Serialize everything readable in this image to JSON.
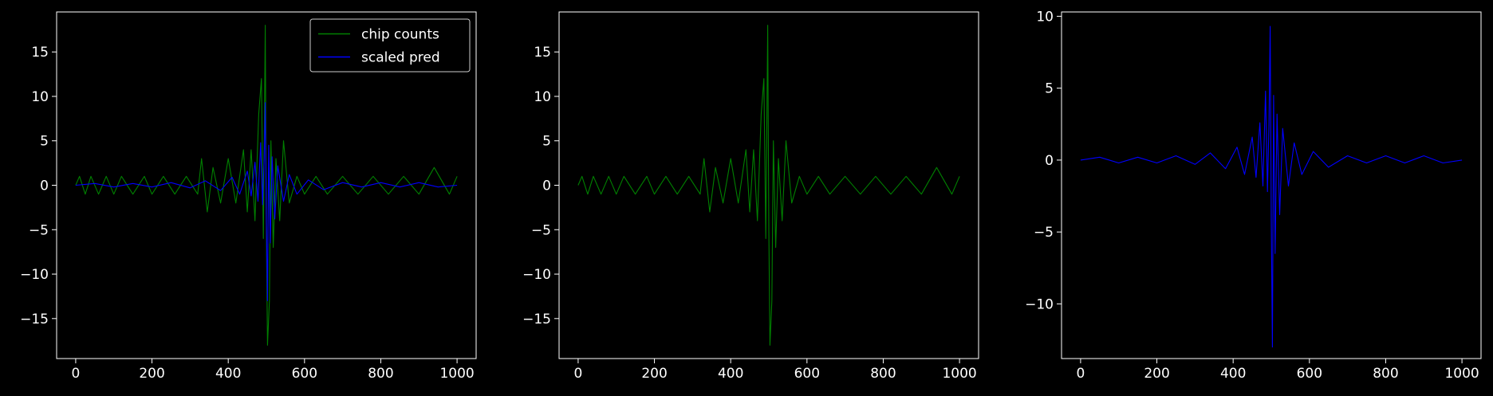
{
  "chart_data": [
    {
      "type": "line",
      "title": "",
      "xlabel": "",
      "ylabel": "",
      "xlim": [
        -50,
        1050
      ],
      "ylim": [
        -19.5,
        19.5
      ],
      "x_ticks": [
        "0",
        "200",
        "400",
        "600",
        "800",
        "1000"
      ],
      "y_ticks": [
        "−15",
        "−10",
        "−5",
        "0",
        "5",
        "10",
        "15"
      ],
      "legend": {
        "position": "top-right",
        "entries": [
          "chip counts",
          "scaled pred"
        ]
      },
      "series": [
        {
          "name": "chip counts",
          "color": "#008000",
          "x": [
            0,
            10,
            25,
            40,
            60,
            80,
            100,
            120,
            150,
            180,
            200,
            230,
            260,
            290,
            320,
            330,
            345,
            360,
            380,
            400,
            420,
            440,
            450,
            460,
            470,
            480,
            487,
            492,
            497,
            500,
            503,
            508,
            512,
            518,
            525,
            535,
            545,
            560,
            580,
            600,
            630,
            660,
            700,
            740,
            780,
            820,
            860,
            900,
            940,
            980,
            1000
          ],
          "y": [
            0,
            1,
            -1,
            1,
            -1,
            1,
            -1,
            1,
            -1,
            1,
            -1,
            1,
            -1,
            1,
            -1,
            3,
            -3,
            2,
            -2,
            3,
            -2,
            4,
            -3,
            4,
            -4,
            8,
            12,
            -6,
            18,
            -5,
            -18,
            -13,
            5,
            -7,
            3,
            -4,
            5,
            -2,
            1,
            -1,
            1,
            -1,
            1,
            -1,
            1,
            -1,
            1,
            -1,
            2,
            -1,
            1
          ]
        },
        {
          "name": "scaled pred",
          "color": "#0000ff",
          "x": [
            0,
            50,
            100,
            150,
            200,
            250,
            300,
            340,
            380,
            410,
            430,
            450,
            460,
            470,
            478,
            485,
            490,
            494,
            497,
            500,
            503,
            506,
            510,
            515,
            522,
            530,
            545,
            560,
            580,
            610,
            650,
            700,
            750,
            800,
            850,
            900,
            950,
            1000
          ],
          "y": [
            0,
            0.2,
            -0.2,
            0.2,
            -0.2,
            0.3,
            -0.3,
            0.5,
            -0.6,
            0.9,
            -1,
            1.6,
            -1.2,
            2.6,
            -1.8,
            4.8,
            -2.2,
            2.5,
            9.3,
            -4.2,
            -13,
            4.5,
            -6.5,
            3.2,
            -3.8,
            2.2,
            -1.8,
            1.2,
            -1,
            0.6,
            -0.5,
            0.3,
            -0.2,
            0.3,
            -0.2,
            0.3,
            -0.2,
            0
          ]
        }
      ]
    },
    {
      "type": "line",
      "title": "",
      "xlabel": "",
      "ylabel": "",
      "xlim": [
        -50,
        1050
      ],
      "ylim": [
        -19.5,
        19.5
      ],
      "x_ticks": [
        "0",
        "200",
        "400",
        "600",
        "800",
        "1000"
      ],
      "y_ticks": [
        "−15",
        "−10",
        "−5",
        "0",
        "5",
        "10",
        "15"
      ],
      "series": [
        {
          "color": "#008000",
          "x": [
            0,
            10,
            25,
            40,
            60,
            80,
            100,
            120,
            150,
            180,
            200,
            230,
            260,
            290,
            320,
            330,
            345,
            360,
            380,
            400,
            420,
            440,
            450,
            460,
            470,
            480,
            487,
            492,
            497,
            500,
            503,
            508,
            512,
            518,
            525,
            535,
            545,
            560,
            580,
            600,
            630,
            660,
            700,
            740,
            780,
            820,
            860,
            900,
            940,
            980,
            1000
          ],
          "y": [
            0,
            1,
            -1,
            1,
            -1,
            1,
            -1,
            1,
            -1,
            1,
            -1,
            1,
            -1,
            1,
            -1,
            3,
            -3,
            2,
            -2,
            3,
            -2,
            4,
            -3,
            4,
            -4,
            8,
            12,
            -6,
            18,
            -5,
            -18,
            -13,
            5,
            -7,
            3,
            -4,
            5,
            -2,
            1,
            -1,
            1,
            -1,
            1,
            -1,
            1,
            -1,
            1,
            -1,
            2,
            -1,
            1
          ]
        }
      ]
    },
    {
      "type": "line",
      "title": "",
      "xlabel": "",
      "ylabel": "",
      "xlim": [
        -50,
        1050
      ],
      "ylim": [
        -13.8,
        10.3
      ],
      "x_ticks": [
        "0",
        "200",
        "400",
        "600",
        "800",
        "1000"
      ],
      "y_ticks": [
        "−10",
        "−5",
        "0",
        "5",
        "10"
      ],
      "series": [
        {
          "color": "#0000ff",
          "x": [
            0,
            50,
            100,
            150,
            200,
            250,
            300,
            340,
            380,
            410,
            430,
            450,
            460,
            470,
            478,
            485,
            490,
            494,
            497,
            500,
            503,
            506,
            510,
            515,
            522,
            530,
            545,
            560,
            580,
            610,
            650,
            700,
            750,
            800,
            850,
            900,
            950,
            1000
          ],
          "y": [
            0,
            0.2,
            -0.2,
            0.2,
            -0.2,
            0.3,
            -0.3,
            0.5,
            -0.6,
            0.9,
            -1,
            1.6,
            -1.2,
            2.6,
            -1.8,
            4.8,
            -2.2,
            2.5,
            9.3,
            -4.2,
            -13,
            4.5,
            -6.5,
            3.2,
            -3.8,
            2.2,
            -1.8,
            1.2,
            -1,
            0.6,
            -0.5,
            0.3,
            -0.2,
            0.3,
            -0.2,
            0.3,
            -0.2,
            0
          ]
        }
      ]
    }
  ]
}
